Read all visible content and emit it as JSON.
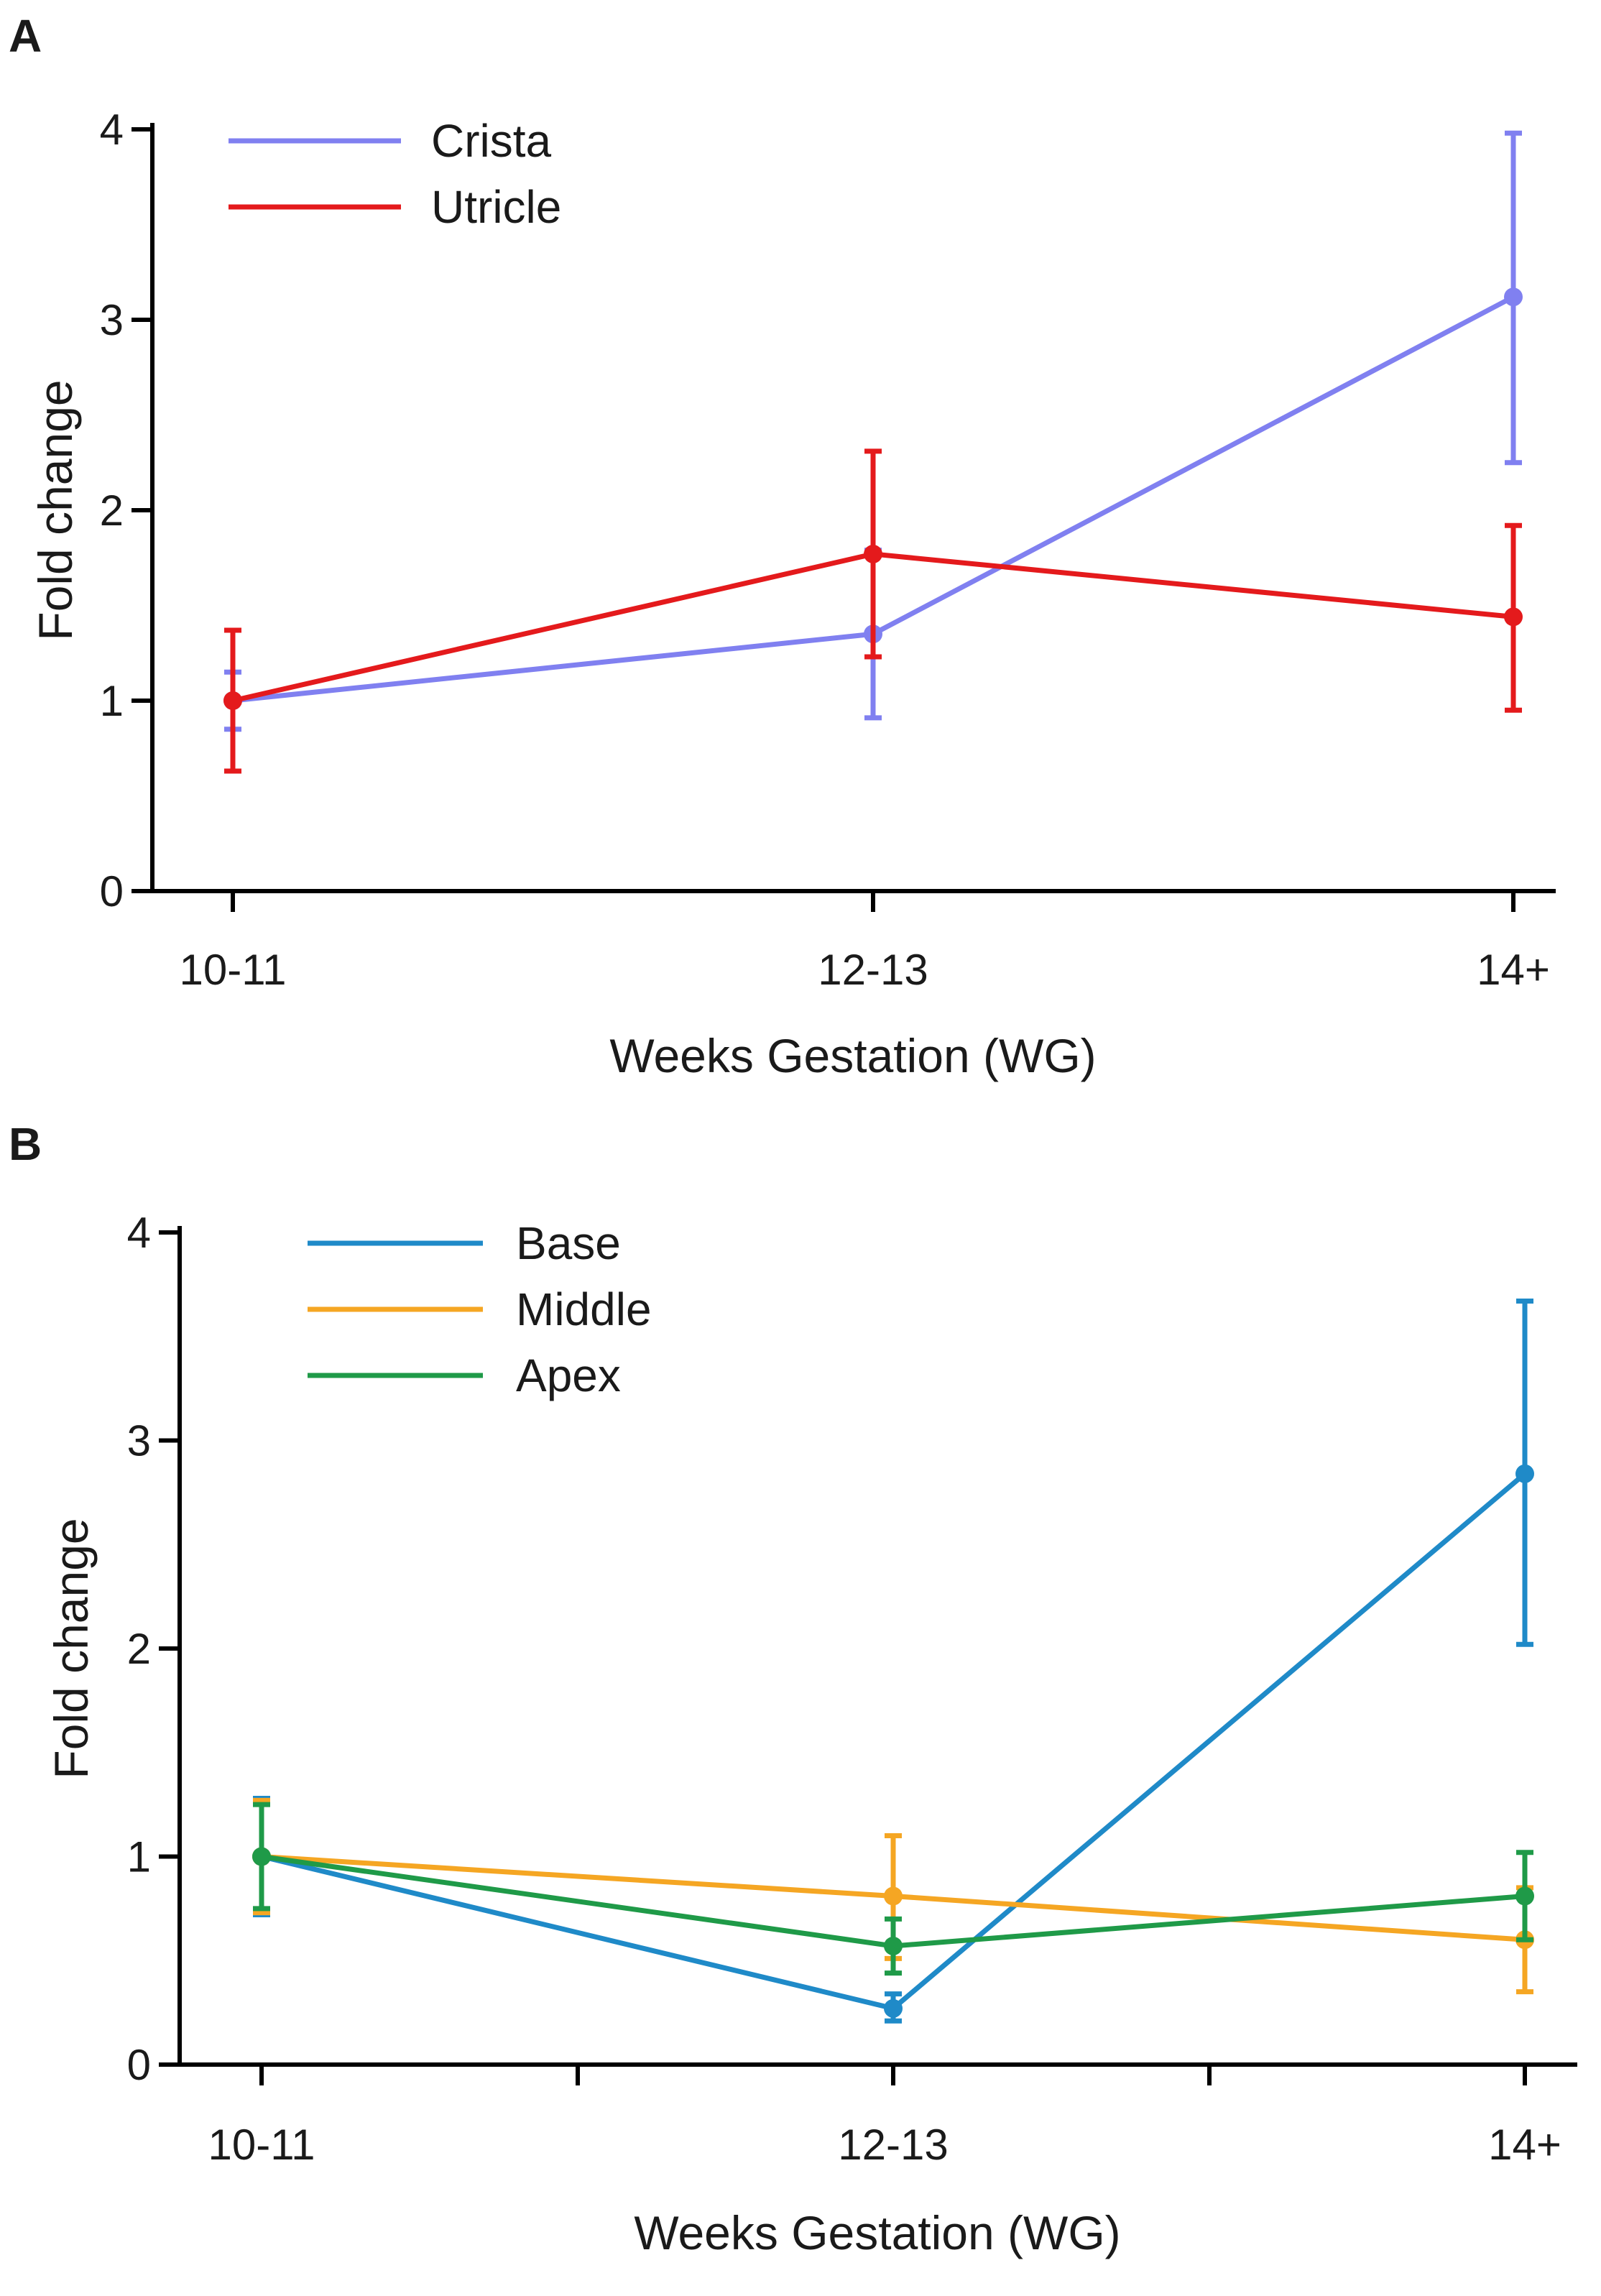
{
  "chart_data": [
    {
      "type": "line",
      "panel_label": "A",
      "title": "",
      "xlabel": "Weeks Gestation (WG)",
      "ylabel": "Fold change",
      "categories": [
        "10-11",
        "12-13",
        "14+"
      ],
      "yticks": [
        "0",
        "1",
        "2",
        "3",
        "4"
      ],
      "ylim": [
        0,
        4
      ],
      "grid": false,
      "legend_position": "top-left",
      "series": [
        {
          "name": "Crista",
          "color": "#8080f0",
          "values": [
            1.0,
            1.35,
            3.12
          ],
          "err_low": [
            0.85,
            0.91,
            2.25
          ],
          "err_high": [
            1.15,
            1.79,
            3.98
          ]
        },
        {
          "name": "Utricle",
          "color": "#e41a1c",
          "values": [
            1.0,
            1.77,
            1.44
          ],
          "err_low": [
            0.63,
            1.23,
            0.95
          ],
          "err_high": [
            1.37,
            2.31,
            1.92
          ]
        }
      ]
    },
    {
      "type": "line",
      "panel_label": "B",
      "title": "",
      "xlabel": "Weeks Gestation (WG)",
      "ylabel": "Fold change",
      "categories": [
        "10-11",
        "12-13",
        "14+"
      ],
      "yticks": [
        "0",
        "1",
        "2",
        "3",
        "4"
      ],
      "ylim": [
        0,
        4
      ],
      "grid": false,
      "legend_position": "top-left",
      "series": [
        {
          "name": "Base",
          "color": "#1f8ac8",
          "values": [
            1.0,
            0.27,
            2.84
          ],
          "err_low": [
            0.72,
            0.21,
            2.02
          ],
          "err_high": [
            1.28,
            0.34,
            3.67
          ]
        },
        {
          "name": "Middle",
          "color": "#f5a623",
          "values": [
            1.0,
            0.81,
            0.6
          ],
          "err_low": [
            0.73,
            0.51,
            0.35
          ],
          "err_high": [
            1.27,
            1.1,
            0.85
          ]
        },
        {
          "name": "Apex",
          "color": "#1f9a48",
          "values": [
            1.0,
            0.57,
            0.81
          ],
          "err_low": [
            0.75,
            0.44,
            0.6
          ],
          "err_high": [
            1.25,
            0.7,
            1.02
          ]
        }
      ]
    }
  ]
}
